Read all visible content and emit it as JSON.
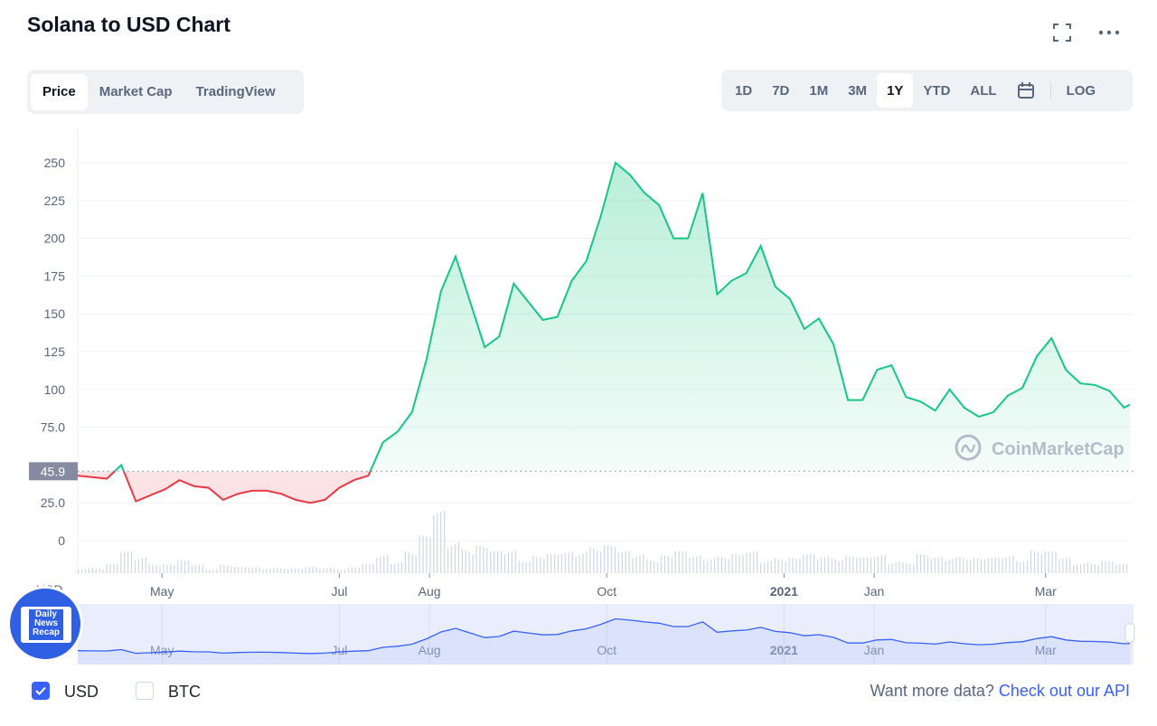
{
  "header": {
    "title": "Solana to USD Chart",
    "fullscreen_icon": "fullscreen-icon",
    "more_icon": "ellipsis-icon"
  },
  "tabs": [
    {
      "label": "Price",
      "active": true
    },
    {
      "label": "Market Cap",
      "active": false
    },
    {
      "label": "TradingView",
      "active": false
    }
  ],
  "ranges": [
    {
      "label": "1D"
    },
    {
      "label": "7D"
    },
    {
      "label": "1M"
    },
    {
      "label": "3M"
    },
    {
      "label": "1Y",
      "active": true
    },
    {
      "label": "YTD"
    },
    {
      "label": "ALL"
    }
  ],
  "calendar_icon": "calendar-icon",
  "log_label": "LOG",
  "watermark": "CoinMarketCap",
  "currency_label": "USD",
  "badge": {
    "line1": "Daily",
    "line2": "News",
    "line3": "Recap"
  },
  "footer": {
    "options": [
      {
        "label": "USD",
        "checked": true
      },
      {
        "label": "BTC",
        "checked": false
      }
    ],
    "more_text": "Want more data?",
    "api_link": "Check out our API"
  },
  "colors": {
    "up": "#16c784",
    "down": "#ea3943",
    "navigator": "#3861fb",
    "accent": "#3861fb"
  },
  "chart_data": {
    "type": "area",
    "title": "Solana to USD Chart",
    "ylabel": "USD",
    "ylim": [
      0,
      260
    ],
    "yticks": [
      "0",
      "25.0",
      "75.0",
      "100",
      "125",
      "150",
      "175",
      "200",
      "225",
      "250"
    ],
    "ytick_values": [
      0,
      25,
      75,
      100,
      125,
      150,
      175,
      200,
      225,
      250
    ],
    "baseline": {
      "value": 45.9,
      "label": "45.9"
    },
    "xlim": [
      "2021-04-02",
      "2022-03-30"
    ],
    "xticks": [
      {
        "label": "May",
        "date": "2021-05-01"
      },
      {
        "label": "Jul",
        "date": "2021-07-01"
      },
      {
        "label": "Aug",
        "date": "2021-08-01"
      },
      {
        "label": "Oct",
        "date": "2021-10-01"
      },
      {
        "label": "2021",
        "date": "2021-12-01"
      },
      {
        "label": "Jan",
        "date": "2022-01-01"
      },
      {
        "label": "Mar",
        "date": "2022-03-01"
      }
    ],
    "grid": true,
    "series": [
      {
        "points": [
          [
            "2021-04-02",
            43
          ],
          [
            "2021-04-07",
            42
          ],
          [
            "2021-04-12",
            41
          ],
          [
            "2021-04-17",
            50
          ],
          [
            "2021-04-22",
            26
          ],
          [
            "2021-04-27",
            30
          ],
          [
            "2021-05-02",
            34
          ],
          [
            "2021-05-07",
            40
          ],
          [
            "2021-05-12",
            36
          ],
          [
            "2021-05-17",
            35
          ],
          [
            "2021-05-22",
            27
          ],
          [
            "2021-05-27",
            31
          ],
          [
            "2021-06-01",
            33
          ],
          [
            "2021-06-06",
            33
          ],
          [
            "2021-06-11",
            31
          ],
          [
            "2021-06-16",
            27
          ],
          [
            "2021-06-21",
            25
          ],
          [
            "2021-06-26",
            27
          ],
          [
            "2021-07-01",
            35
          ],
          [
            "2021-07-06",
            40
          ],
          [
            "2021-07-11",
            43
          ],
          [
            "2021-07-16",
            65
          ],
          [
            "2021-07-21",
            72
          ],
          [
            "2021-07-26",
            85
          ],
          [
            "2021-07-31",
            120
          ],
          [
            "2021-08-05",
            165
          ],
          [
            "2021-08-10",
            188
          ],
          [
            "2021-08-15",
            158
          ],
          [
            "2021-08-20",
            128
          ],
          [
            "2021-08-25",
            135
          ],
          [
            "2021-08-30",
            170
          ],
          [
            "2021-09-04",
            158
          ],
          [
            "2021-09-09",
            146
          ],
          [
            "2021-09-14",
            148
          ],
          [
            "2021-09-19",
            172
          ],
          [
            "2021-09-24",
            185
          ],
          [
            "2021-09-29",
            215
          ],
          [
            "2021-10-04",
            250
          ],
          [
            "2021-10-09",
            242
          ],
          [
            "2021-10-14",
            230
          ],
          [
            "2021-10-19",
            222
          ],
          [
            "2021-10-24",
            200
          ],
          [
            "2021-10-29",
            200
          ],
          [
            "2021-11-03",
            230
          ],
          [
            "2021-11-08",
            163
          ],
          [
            "2021-11-13",
            172
          ],
          [
            "2021-11-18",
            177
          ],
          [
            "2021-11-23",
            195
          ],
          [
            "2021-11-28",
            168
          ],
          [
            "2021-12-03",
            160
          ],
          [
            "2021-12-08",
            140
          ],
          [
            "2021-12-13",
            147
          ],
          [
            "2021-12-18",
            130
          ],
          [
            "2021-12-23",
            93
          ],
          [
            "2021-12-28",
            93
          ],
          [
            "2022-01-02",
            113
          ],
          [
            "2022-01-07",
            116
          ],
          [
            "2022-01-12",
            95
          ],
          [
            "2022-01-17",
            92
          ],
          [
            "2022-01-22",
            86
          ],
          [
            "2022-01-27",
            100
          ],
          [
            "2022-02-01",
            88
          ],
          [
            "2022-02-06",
            82
          ],
          [
            "2022-02-11",
            85
          ],
          [
            "2022-02-16",
            96
          ],
          [
            "2022-02-21",
            101
          ],
          [
            "2022-02-26",
            122
          ],
          [
            "2022-03-03",
            134
          ],
          [
            "2022-03-08",
            113
          ],
          [
            "2022-03-13",
            104
          ],
          [
            "2022-03-18",
            103
          ],
          [
            "2022-03-23",
            99
          ],
          [
            "2022-03-28",
            88
          ],
          [
            "2022-03-30",
            90
          ]
        ]
      }
    ],
    "volume_relative": [
      0.1,
      0.1,
      0.15,
      0.35,
      0.3,
      0.2,
      0.15,
      0.2,
      0.15,
      0.1,
      0.15,
      0.1,
      0.1,
      0.1,
      0.1,
      0.08,
      0.1,
      0.1,
      0.1,
      0.1,
      0.15,
      0.3,
      0.25,
      0.4,
      0.6,
      1.0,
      0.6,
      0.5,
      0.45,
      0.35,
      0.4,
      0.3,
      0.3,
      0.3,
      0.35,
      0.45,
      0.5,
      0.45,
      0.35,
      0.35,
      0.3,
      0.3,
      0.35,
      0.3,
      0.35,
      0.3,
      0.3,
      0.35,
      0.25,
      0.3,
      0.25,
      0.3,
      0.3,
      0.35,
      0.3,
      0.25,
      0.3,
      0.25,
      0.2,
      0.3,
      0.25,
      0.3,
      0.35,
      0.25,
      0.25,
      0.3,
      0.3,
      0.4,
      0.35,
      0.25,
      0.2,
      0.2,
      0.2,
      0.15
    ]
  }
}
